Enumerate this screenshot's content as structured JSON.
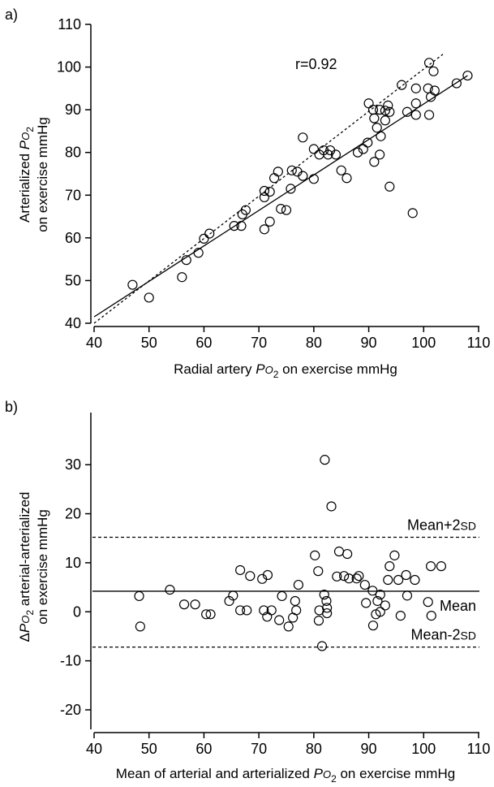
{
  "chart_data": [
    {
      "panel": "a)",
      "type": "scatter",
      "xlabel_parts": [
        "Radial artery ",
        "P",
        "O",
        "2",
        " on exercise  mmHg"
      ],
      "ylabel_line1_parts": [
        "Arterialized ",
        "P",
        "O",
        "2"
      ],
      "ylabel_line2": "on exercise  mmHg",
      "xlim": [
        40,
        110
      ],
      "ylim": [
        40,
        110
      ],
      "xticks": [
        "40",
        "50",
        "60",
        "70",
        "80",
        "90",
        "100",
        "110"
      ],
      "yticks": [
        "40",
        "50",
        "60",
        "70",
        "80",
        "90",
        "100",
        "110"
      ],
      "annotation": "r=0.92",
      "lines": [
        {
          "style": "solid",
          "x": [
            40,
            108
          ],
          "y": [
            41.5,
            98
          ]
        },
        {
          "style": "dashed",
          "x": [
            40,
            103.5
          ],
          "y": [
            40,
            103
          ]
        }
      ],
      "points": [
        [
          47,
          49
        ],
        [
          50,
          46
        ],
        [
          56,
          50.8
        ],
        [
          56.8,
          54.8
        ],
        [
          59,
          56.5
        ],
        [
          60,
          59.8
        ],
        [
          61,
          61
        ],
        [
          65.5,
          62.8
        ],
        [
          66.8,
          62.8
        ],
        [
          67,
          65.5
        ],
        [
          67.6,
          66.5
        ],
        [
          71,
          62
        ],
        [
          71,
          69.5
        ],
        [
          71,
          71
        ],
        [
          72,
          63.8
        ],
        [
          72,
          70.8
        ],
        [
          72.8,
          74
        ],
        [
          73.5,
          75.5
        ],
        [
          74,
          66.8
        ],
        [
          75,
          66.5
        ],
        [
          75.8,
          71.5
        ],
        [
          76,
          75.8
        ],
        [
          77,
          75.5
        ],
        [
          78,
          74.5
        ],
        [
          78,
          83.5
        ],
        [
          80,
          73.8
        ],
        [
          80,
          80.8
        ],
        [
          81,
          79.5
        ],
        [
          81.8,
          80.5
        ],
        [
          82.6,
          79.5
        ],
        [
          83,
          80.5
        ],
        [
          84,
          79.5
        ],
        [
          85,
          75.8
        ],
        [
          86,
          74
        ],
        [
          88,
          80
        ],
        [
          89,
          80.8
        ],
        [
          89.8,
          82.3
        ],
        [
          90,
          91.5
        ],
        [
          90.8,
          90
        ],
        [
          91,
          77.8
        ],
        [
          91,
          88
        ],
        [
          91.5,
          85.8
        ],
        [
          92,
          79.5
        ],
        [
          92,
          90
        ],
        [
          92.2,
          83.8
        ],
        [
          93,
          87.5
        ],
        [
          93,
          89.8
        ],
        [
          93.5,
          91
        ],
        [
          93.8,
          89.5
        ],
        [
          93.8,
          72
        ],
        [
          96,
          95.8
        ],
        [
          97,
          89.5
        ],
        [
          98,
          65.8
        ],
        [
          98.6,
          95
        ],
        [
          98.6,
          91.5
        ],
        [
          98.6,
          88.8
        ],
        [
          100.8,
          95
        ],
        [
          101,
          101
        ],
        [
          101,
          88.8
        ],
        [
          101.3,
          93
        ],
        [
          101.8,
          99
        ],
        [
          102,
          94.5
        ],
        [
          106,
          96.2
        ],
        [
          108,
          98
        ]
      ]
    },
    {
      "panel": "b)",
      "type": "scatter",
      "xlabel_parts": [
        "Mean of arterial and arterialized ",
        "P",
        "O",
        "2",
        " on exercise  mmHg"
      ],
      "ylabel_line1_parts": [
        "Δ",
        "P",
        "O",
        "2",
        " arterial-arterialized"
      ],
      "ylabel_line2": "on exercise  mmHg",
      "xlim": [
        40,
        110
      ],
      "ylim": [
        -20,
        35
      ],
      "xticks": [
        "40",
        "50",
        "60",
        "70",
        "80",
        "90",
        "100",
        "110"
      ],
      "yticks": [
        "-20",
        "-10",
        "0",
        "10",
        "20",
        "30"
      ],
      "reference_lines": [
        {
          "label_parts": [
            "Mean+2",
            "SD"
          ],
          "y": 15.2,
          "style": "dashed"
        },
        {
          "label_parts": [
            "Mean"
          ],
          "y": 4.2,
          "style": "solid"
        },
        {
          "label_parts": [
            "Mean-2",
            "SD"
          ],
          "y": -7.2,
          "style": "dashed"
        }
      ],
      "points": [
        [
          48.2,
          3.2
        ],
        [
          48.4,
          -3
        ],
        [
          53.8,
          4.5
        ],
        [
          56.4,
          1.5
        ],
        [
          58.4,
          1.5
        ],
        [
          60.4,
          -0.5
        ],
        [
          61.2,
          -0.5
        ],
        [
          64.6,
          2.2
        ],
        [
          65.3,
          3.3
        ],
        [
          66.6,
          8.5
        ],
        [
          66.6,
          0.3
        ],
        [
          67.8,
          0.3
        ],
        [
          68.4,
          7.3
        ],
        [
          70.6,
          6.7
        ],
        [
          70.9,
          0.3
        ],
        [
          71.6,
          7.5
        ],
        [
          71.5,
          -1
        ],
        [
          72.3,
          0.3
        ],
        [
          74.2,
          3.2
        ],
        [
          73.7,
          -1.7
        ],
        [
          75.4,
          -3
        ],
        [
          76.2,
          -1.2
        ],
        [
          76.8,
          0.3
        ],
        [
          76.6,
          2.2
        ],
        [
          77.2,
          5.5
        ],
        [
          80.2,
          11.5
        ],
        [
          80.8,
          8.3
        ],
        [
          80.9,
          -1.8
        ],
        [
          81,
          0.3
        ],
        [
          81.5,
          -7
        ],
        [
          82,
          31
        ],
        [
          81.9,
          3.5
        ],
        [
          82.3,
          2.2
        ],
        [
          82.4,
          -0.3
        ],
        [
          82.4,
          0.8
        ],
        [
          83.2,
          21.5
        ],
        [
          84.2,
          7.2
        ],
        [
          84.6,
          12.3
        ],
        [
          85.5,
          7.3
        ],
        [
          86.1,
          11.8
        ],
        [
          86.4,
          6.8
        ],
        [
          87.8,
          6.8
        ],
        [
          88.2,
          7.3
        ],
        [
          89.3,
          5.5
        ],
        [
          89.5,
          1.8
        ],
        [
          90.7,
          4.3
        ],
        [
          90.8,
          -2.8
        ],
        [
          91.3,
          -0.5
        ],
        [
          91.6,
          2.2
        ],
        [
          92.1,
          3.5
        ],
        [
          92.1,
          0
        ],
        [
          93,
          1.3
        ],
        [
          93.5,
          6.5
        ],
        [
          93.8,
          9.3
        ],
        [
          94.7,
          11.5
        ],
        [
          95.4,
          6.5
        ],
        [
          95.8,
          -0.8
        ],
        [
          96.8,
          7.5
        ],
        [
          97,
          3.3
        ],
        [
          98.4,
          6.5
        ],
        [
          100.8,
          2
        ],
        [
          101.4,
          -0.8
        ],
        [
          101.3,
          9.3
        ],
        [
          103.2,
          9.3
        ]
      ]
    }
  ]
}
